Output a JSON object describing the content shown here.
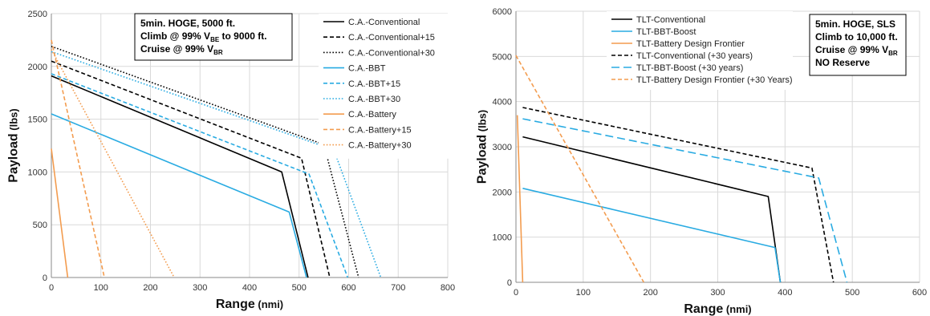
{
  "chart_data": [
    {
      "type": "line",
      "xlabel": "Range",
      "xunit": "(nmi)",
      "ylabel": "Payload",
      "yunit": "(lbs)",
      "xlim": [
        0,
        800
      ],
      "ylim": [
        0,
        2500
      ],
      "x_ticks": [
        0,
        100,
        200,
        300,
        400,
        500,
        600,
        700,
        800
      ],
      "y_ticks": [
        0,
        500,
        1000,
        1500,
        2000,
        2500
      ],
      "x_tick_labels": [
        "0",
        "100",
        "200",
        "300",
        "400",
        "500",
        "600",
        "700",
        "800"
      ],
      "y_tick_labels": [
        "0",
        "500",
        "1000",
        "1500",
        "2000",
        "2500"
      ],
      "grid": true,
      "legend_position": "top-right",
      "annotation": {
        "lines": [
          {
            "segments": [
              {
                "text": "5min. HOGE, 5000 ft.",
                "sub": false
              }
            ]
          },
          {
            "segments": [
              {
                "text": "Climb @ 99% V",
                "sub": false
              },
              {
                "text": "BE",
                "sub": true
              },
              {
                "text": " to 9000 ft.",
                "sub": false
              }
            ]
          },
          {
            "segments": [
              {
                "text": "Cruise @ 99% V",
                "sub": false
              },
              {
                "text": "BR",
                "sub": true
              }
            ]
          }
        ]
      },
      "series": [
        {
          "name": "C.A.-Conventional",
          "color": "#000000",
          "dash": "solid",
          "points": [
            [
              0,
              1910
            ],
            [
              465,
              1000
            ],
            [
              518,
              0
            ]
          ]
        },
        {
          "name": "C.A.-Conventional+15",
          "color": "#000000",
          "dash": "dashed",
          "points": [
            [
              0,
              2050
            ],
            [
              505,
              1130
            ],
            [
              562,
              0
            ]
          ]
        },
        {
          "name": "C.A.-Conventional+30",
          "color": "#000000",
          "dash": "dotted",
          "points": [
            [
              0,
              2190
            ],
            [
              550,
              1260
            ],
            [
              620,
              0
            ]
          ]
        },
        {
          "name": "C.A.-BBT",
          "color": "#29ABE2",
          "dash": "solid",
          "points": [
            [
              0,
              1550
            ],
            [
              480,
              620
            ],
            [
              515,
              0
            ]
          ]
        },
        {
          "name": "C.A.-BBT+15",
          "color": "#29ABE2",
          "dash": "dashed",
          "points": [
            [
              0,
              1930
            ],
            [
              520,
              980
            ],
            [
              598,
              0
            ]
          ]
        },
        {
          "name": "C.A.-BBT+30",
          "color": "#29ABE2",
          "dash": "dotted",
          "points": [
            [
              0,
              2140
            ],
            [
              570,
              1210
            ],
            [
              665,
              0
            ]
          ]
        },
        {
          "name": "C.A.-Battery",
          "color": "#F39C4F",
          "dash": "solid",
          "points": [
            [
              0,
              1220
            ],
            [
              33,
              0
            ]
          ]
        },
        {
          "name": "C.A.-Battery+15",
          "color": "#F39C4F",
          "dash": "dashed",
          "points": [
            [
              0,
              2250
            ],
            [
              107,
              0
            ]
          ]
        },
        {
          "name": "C.A.-Battery+30",
          "color": "#F39C4F",
          "dash": "dotted",
          "points": [
            [
              0,
              2160
            ],
            [
              248,
              0
            ]
          ]
        }
      ]
    },
    {
      "type": "line",
      "xlabel": "Range",
      "xunit": "(nmi)",
      "ylabel": "Payload",
      "yunit": "(lbs)",
      "xlim": [
        0,
        600
      ],
      "ylim": [
        0,
        6000
      ],
      "x_ticks": [
        0,
        100,
        200,
        300,
        400,
        500,
        600
      ],
      "y_ticks": [
        0,
        1000,
        2000,
        3000,
        4000,
        5000,
        6000
      ],
      "x_tick_labels": [
        "0",
        "100",
        "200",
        "300",
        "400",
        "500",
        "600"
      ],
      "y_tick_labels": [
        "0",
        "1000",
        "2000",
        "3000",
        "4000",
        "5000",
        "6000"
      ],
      "grid": true,
      "legend_position": "top-left",
      "annotation": {
        "lines": [
          {
            "segments": [
              {
                "text": "5min. HOGE, SLS",
                "sub": false
              }
            ]
          },
          {
            "segments": [
              {
                "text": "Climb to 10,000 ft.",
                "sub": false
              }
            ]
          },
          {
            "segments": [
              {
                "text": "Cruise @ 99% V",
                "sub": false
              },
              {
                "text": "BR",
                "sub": true
              }
            ]
          },
          {
            "segments": [
              {
                "text": "NO Reserve",
                "sub": false
              }
            ]
          }
        ]
      },
      "series": [
        {
          "name": "TLT-Conventional",
          "color": "#000000",
          "dash": "solid",
          "points": [
            [
              10,
              3220
            ],
            [
              375,
              1900
            ],
            [
              393,
              0
            ]
          ]
        },
        {
          "name": "TLT-BBT-Boost",
          "color": "#29ABE2",
          "dash": "solid",
          "points": [
            [
              10,
              2080
            ],
            [
              385,
              770
            ],
            [
              393,
              0
            ]
          ]
        },
        {
          "name": "TLT-Battery Design Frontier",
          "color": "#F39C4F",
          "dash": "solid",
          "points": [
            [
              2,
              3700
            ],
            [
              10,
              0
            ]
          ]
        },
        {
          "name": "TLT-Conventional (+30 years)",
          "color": "#000000",
          "dash": "dashed",
          "points": [
            [
              10,
              3870
            ],
            [
              440,
              2530
            ],
            [
              472,
              0
            ]
          ]
        },
        {
          "name": "TLT-BBT-Boost (+30 years)",
          "color": "#29ABE2",
          "dash": "longdash",
          "points": [
            [
              10,
              3620
            ],
            [
              450,
              2310
            ],
            [
              492,
              0
            ]
          ]
        },
        {
          "name": "TLT-Battery Design Frontier (+30 Years)",
          "color": "#F39C4F",
          "dash": "dashed",
          "points": [
            [
              0,
              5020
            ],
            [
              190,
              0
            ]
          ]
        }
      ]
    }
  ]
}
